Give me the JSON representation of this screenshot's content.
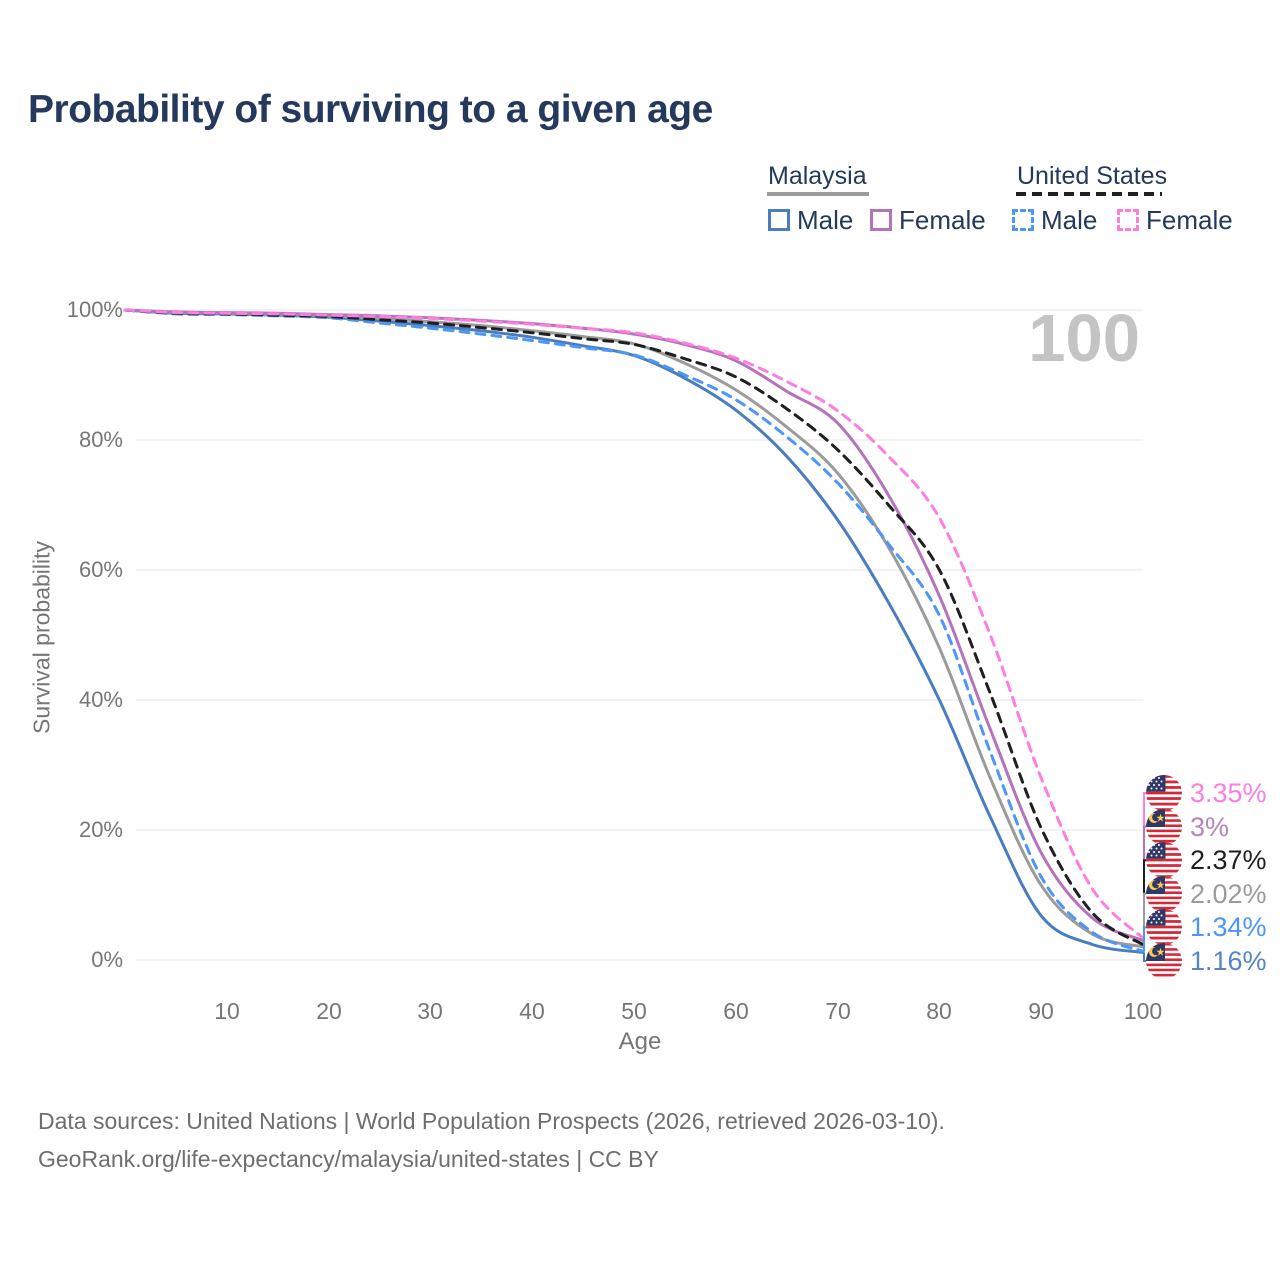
{
  "title": "Probability of surviving to a given age",
  "watermark": "100",
  "legend": {
    "malaysia": {
      "label": "Malaysia",
      "male": "Male",
      "female": "Female"
    },
    "united_states": {
      "label": "United States",
      "male": "Male",
      "female": "Female"
    }
  },
  "y_axis": {
    "title": "Survival probability",
    "ticks": [
      "100%",
      "80%",
      "60%",
      "40%",
      "20%",
      "0%"
    ]
  },
  "x_axis": {
    "title": "Age",
    "ticks": [
      "10",
      "20",
      "30",
      "40",
      "50",
      "60",
      "70",
      "80",
      "90",
      "100"
    ]
  },
  "end_labels": [
    {
      "series": "United States Female",
      "flag": "united-states",
      "value": "3.35%",
      "color": "#FD7EDE"
    },
    {
      "series": "Malaysia Female",
      "flag": "malaysia",
      "value": "3%",
      "color": "#B583BE"
    },
    {
      "series": "United States Total",
      "flag": "united-states",
      "value": "2.37%",
      "color": "#1F1F1F"
    },
    {
      "series": "Malaysia Total",
      "flag": "malaysia",
      "value": "2.02%",
      "color": "#9B9B9B"
    },
    {
      "series": "United States Male",
      "flag": "united-states",
      "value": "1.34%",
      "color": "#4C96F8"
    },
    {
      "series": "Malaysia Male",
      "flag": "malaysia",
      "value": "1.16%",
      "color": "#5585C9"
    }
  ],
  "footer": {
    "line1": "Data sources: United Nations | World Population Prospects (2026, retrieved 2026-03-10).",
    "line2": "GeoRank.org/life-expectancy/malaysia/united-states | CC BY"
  },
  "chart_data": {
    "type": "line",
    "title": "Probability of surviving to a given age",
    "xlabel": "Age",
    "ylabel": "Survival probability",
    "x_range": [
      0,
      100
    ],
    "y_range_percent": [
      0,
      100
    ],
    "grid": "horizontal",
    "legend_position": "top-right",
    "x": [
      0,
      5,
      10,
      15,
      20,
      25,
      30,
      35,
      40,
      45,
      50,
      55,
      60,
      65,
      70,
      75,
      80,
      85,
      90,
      95,
      100
    ],
    "series": [
      {
        "name": "Malaysia Male",
        "country": "Malaysia",
        "sex": "male",
        "color": "#4A7DBF",
        "dash": false,
        "values": [
          100,
          99.5,
          99.4,
          99.2,
          98.9,
          98.3,
          97.6,
          96.8,
          95.8,
          94.5,
          93.0,
          89.5,
          84.6,
          77.5,
          67.7,
          55.0,
          40.0,
          22.0,
          6.8,
          2.4,
          1.16
        ],
        "final_label": "1.16%"
      },
      {
        "name": "Malaysia Total",
        "country": "Malaysia",
        "sex": "total",
        "color": "#9B9B9B",
        "dash": false,
        "values": [
          100,
          99.6,
          99.5,
          99.3,
          99.1,
          98.7,
          98.2,
          97.6,
          96.8,
          95.9,
          94.8,
          91.8,
          87.7,
          82.0,
          74.9,
          63.5,
          48.0,
          28.0,
          11.5,
          4.0,
          2.02
        ],
        "final_label": "2.02%"
      },
      {
        "name": "Malaysia Female",
        "country": "Malaysia",
        "sex": "female",
        "color": "#B573BB",
        "dash": false,
        "values": [
          100,
          99.7,
          99.6,
          99.5,
          99.3,
          99.1,
          98.8,
          98.4,
          97.9,
          97.2,
          96.3,
          94.7,
          92.2,
          87.5,
          82.6,
          71.5,
          56.0,
          35.5,
          16.5,
          6.5,
          3.0
        ],
        "final_label": "3%"
      },
      {
        "name": "United States Male",
        "country": "United States",
        "sex": "male",
        "color": "#4C96F8",
        "dash": true,
        "values": [
          100,
          99.4,
          99.3,
          99.1,
          98.8,
          98.0,
          97.2,
          96.3,
          95.3,
          94.2,
          93.1,
          90.0,
          86.2,
          80.5,
          73.4,
          64.0,
          53.0,
          32.0,
          12.8,
          4.3,
          1.34
        ],
        "final_label": "1.34%"
      },
      {
        "name": "United States Total",
        "country": "United States",
        "sex": "total",
        "color": "#1F1F1F",
        "dash": true,
        "values": [
          100,
          99.5,
          99.4,
          99.2,
          99.0,
          98.5,
          98.0,
          97.3,
          96.5,
          95.6,
          94.7,
          92.5,
          89.7,
          84.8,
          78.5,
          70.0,
          60.0,
          41.0,
          20.3,
          7.3,
          2.37
        ],
        "final_label": "2.37%"
      },
      {
        "name": "United States Female",
        "country": "United States",
        "sex": "female",
        "color": "#FD7EDE",
        "dash": true,
        "values": [
          100,
          99.6,
          99.5,
          99.4,
          99.2,
          99.0,
          98.7,
          98.3,
          97.8,
          97.2,
          96.5,
          94.9,
          92.6,
          89.0,
          84.5,
          77.5,
          68.0,
          50.0,
          28.0,
          11.0,
          3.35
        ],
        "final_label": "3.35%"
      }
    ]
  }
}
